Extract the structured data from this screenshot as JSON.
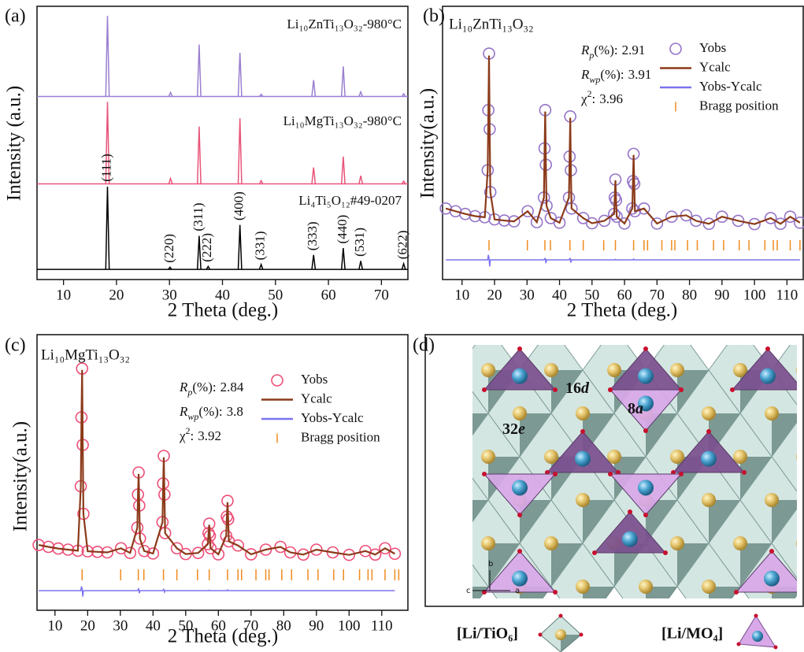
{
  "chart_data": [
    {
      "type": "stick",
      "panel_label": "(a)",
      "x_label": "2 Theta (deg.)",
      "y_label": "Intensity (a.u.)",
      "xlim": [
        5,
        75
      ],
      "xticks": [
        10,
        20,
        30,
        40,
        50,
        60,
        70
      ],
      "ylim": [
        0,
        100
      ],
      "series": [
        {
          "name": "Li₁₀ZnTi₁₃O₃₂-980°C",
          "color": "#9a7fcf",
          "baseline": 67,
          "x": [
            18.3,
            30.2,
            35.6,
            43.3,
            47.3,
            57.2,
            62.8,
            66.1,
            74.2
          ],
          "values": [
            96.5,
            68.5,
            86,
            83,
            67.8,
            73,
            78,
            68.7,
            68
          ]
        },
        {
          "name": "Li₁₀MgTi₁₃O₃₂-980°C",
          "color": "#e8557a",
          "baseline": 35,
          "x": [
            18.3,
            30.2,
            35.6,
            43.3,
            47.3,
            57.2,
            62.8,
            66.1,
            74.2
          ],
          "values": [
            65,
            37,
            56,
            59,
            36.2,
            41,
            45,
            38,
            36
          ]
        },
        {
          "name": "Li₄Ti₅O₁₂#49-0207",
          "color": "#000000",
          "baseline": 3.7,
          "x": [
            18.3,
            30.1,
            35.6,
            37.3,
            43.3,
            47.3,
            57.2,
            62.8,
            66.1,
            74.2
          ],
          "values": [
            34,
            4.5,
            16,
            4.8,
            20,
            5.5,
            9,
            11.5,
            6.8,
            5.8
          ]
        }
      ],
      "peak_labels": {
        "x": [
          18.3,
          30.1,
          35.6,
          37.3,
          43.3,
          47.3,
          57.2,
          62.8,
          66.1,
          74.2
        ],
        "labels": [
          "(111)",
          "(220)",
          "(311)",
          "(222)",
          "(400)",
          "(331)",
          "(333)",
          "(440)",
          "(531)",
          "(622)"
        ]
      }
    },
    {
      "type": "rietveld",
      "panel_label": "(b)",
      "title": "Li₁₀ZnTi₁₃O₃₂",
      "x_label": "2 Theta (deg.)",
      "y_label": "Intensity(a.u.)",
      "xlim": [
        4,
        115
      ],
      "xticks": [
        10,
        20,
        30,
        40,
        50,
        60,
        70,
        80,
        90,
        100,
        110
      ],
      "ylim": [
        0,
        100
      ],
      "stats": [
        {
          "symbol": "R",
          "sub": "p",
          "suffix": "(%):",
          "value": 2.91
        },
        {
          "symbol": "R",
          "sub": "wp",
          "suffix": "(%):",
          "value": 3.91
        },
        {
          "symbol": "χ",
          "sup": "2",
          "suffix": ":",
          "value": 3.96
        }
      ],
      "x": [
        5,
        8,
        11,
        14,
        17,
        17.9,
        18.1,
        18.3,
        18.5,
        18.7,
        20,
        23,
        26,
        30.2,
        33,
        35.2,
        35.4,
        35.6,
        35.8,
        36,
        37.3,
        40,
        42.9,
        43.1,
        43.3,
        43.5,
        43.7,
        47.3,
        50,
        53.8,
        56.8,
        57,
        57.2,
        57.4,
        57.6,
        60,
        62.4,
        62.6,
        62.8,
        63,
        63.2,
        66,
        70,
        74.5,
        79,
        82,
        86,
        90,
        95,
        100,
        105,
        108,
        111,
        114
      ],
      "series": [
        {
          "name": "Yobs",
          "color": "#9474c8",
          "values": [
            26,
            25,
            24,
            23.2,
            22.8,
            40,
            62,
            82.7,
            55,
            32,
            22,
            21.6,
            21.3,
            25,
            21,
            30,
            48,
            62,
            42,
            27,
            22.5,
            20.8,
            30,
            45,
            59.7,
            40,
            26,
            22.5,
            20.6,
            21.5,
            24,
            30,
            36.6,
            29,
            23,
            20.5,
            26,
            36,
            46,
            35,
            25,
            26,
            20.5,
            23,
            23.5,
            21.5,
            20.4,
            23,
            21.5,
            20.3,
            22.5,
            20.4,
            23,
            20.8
          ]
        },
        {
          "name": "Ycalc",
          "color": "#8b3a1a",
          "values": [
            26,
            25,
            24,
            23.2,
            22.8,
            40,
            61,
            82,
            55,
            32,
            22,
            21.6,
            21.3,
            25,
            21,
            30,
            47.5,
            61.5,
            42,
            27,
            22.5,
            20.8,
            30,
            44.5,
            59.2,
            40,
            26,
            22.5,
            20.6,
            21.5,
            24,
            30,
            36.3,
            29,
            23,
            20.5,
            26,
            36,
            45.6,
            35,
            25,
            26,
            20.5,
            23,
            23.5,
            21.5,
            20.4,
            23,
            21.5,
            20.3,
            22.5,
            20.4,
            23,
            20.8
          ]
        },
        {
          "name": "Yobs-Ycalc",
          "color": "#7b73f0",
          "values": [
            7.2,
            7.2,
            7.2,
            7.2,
            7.2,
            7.2,
            9,
            7.9,
            4.8,
            7.2,
            7.2,
            7.2,
            7.2,
            7.2,
            7.2,
            7.2,
            7.6,
            7.7,
            6,
            7.2,
            7.2,
            7.2,
            7.2,
            7.6,
            7.7,
            6.2,
            7.2,
            7.2,
            7.2,
            7.2,
            7.2,
            7.2,
            7.4,
            7.2,
            7.2,
            7.2,
            7.2,
            7.2,
            7.5,
            7.2,
            7.2,
            7.2,
            7.2,
            7.2,
            7.2,
            7.2,
            7.2,
            7.2,
            7.2,
            7.2,
            7.2,
            7.2,
            7.2,
            7.2
          ]
        },
        {
          "name": "Bragg position",
          "color": "#f08a1e",
          "x": [
            18.3,
            30.1,
            35.5,
            37.2,
            43.2,
            47.3,
            53.6,
            57.2,
            62.8,
            66.0,
            67.1,
            71.5,
            74.5,
            75.5,
            79.4,
            82.4,
            87.4,
            90.5,
            95.3,
            98.3,
            103.2,
            105.8,
            107.0,
            111.0,
            114.0
          ]
        }
      ]
    },
    {
      "type": "rietveld",
      "panel_label": "(c)",
      "title": "Li₁₀MgTi₁₃O₃₂",
      "x_label": "2 Theta (deg.)",
      "y_label": "Intensity(a.u.)",
      "xlim": [
        4.5,
        118
      ],
      "xticks": [
        10,
        20,
        30,
        40,
        50,
        60,
        70,
        80,
        90,
        100,
        110
      ],
      "ylim": [
        0,
        100
      ],
      "stats": [
        {
          "symbol": "R",
          "sub": "p",
          "suffix": "(%):",
          "value": 2.84
        },
        {
          "symbol": "R",
          "sub": "wp",
          "suffix": "(%):",
          "value": 3.8
        },
        {
          "symbol": "χ",
          "sup": "2",
          "suffix": ":",
          "value": 3.92
        }
      ],
      "x": [
        5,
        8,
        11,
        14,
        17,
        17.9,
        18.1,
        18.3,
        18.5,
        18.7,
        20,
        23,
        26,
        30.2,
        33,
        35.2,
        35.4,
        35.6,
        35.8,
        36,
        37.3,
        40,
        42.9,
        43.1,
        43.3,
        43.5,
        43.7,
        47.3,
        50,
        53.8,
        56.8,
        57,
        57.2,
        57.4,
        57.6,
        60,
        62.4,
        62.6,
        62.8,
        63,
        63.2,
        66,
        70,
        74.5,
        79,
        82,
        86,
        90,
        95,
        100,
        105,
        108,
        111,
        114
      ],
      "series": [
        {
          "name": "Yobs",
          "color": "#ee4f78",
          "values": [
            23.7,
            23,
            22.4,
            22,
            21.6,
            45,
            70,
            87.7,
            60,
            35,
            21.4,
            21.2,
            21,
            22.5,
            20.8,
            30,
            42,
            50,
            38,
            26,
            21.5,
            20.6,
            32,
            46,
            56,
            42,
            28,
            22.5,
            20.4,
            20.8,
            24,
            28,
            31.4,
            27,
            22.5,
            20.3,
            27,
            34,
            39.7,
            33,
            25,
            23.5,
            20.3,
            22,
            23,
            21,
            20.2,
            22,
            21,
            20.1,
            21.5,
            20.2,
            22.5,
            20.5
          ]
        },
        {
          "name": "Ycalc",
          "color": "#8b3a1a",
          "values": [
            23.7,
            23,
            22.4,
            22,
            21.6,
            45,
            69.5,
            87.2,
            60,
            35,
            21.4,
            21.2,
            21,
            22.5,
            20.8,
            30,
            42,
            49.5,
            38,
            26,
            21.5,
            20.6,
            32,
            45.5,
            55.5,
            42,
            28,
            22.5,
            20.4,
            20.8,
            24,
            28,
            31,
            27,
            22.5,
            20.3,
            27,
            34,
            39.2,
            33,
            25,
            23.5,
            20.3,
            22,
            23,
            21,
            20.2,
            22,
            21,
            20.1,
            21.5,
            20.2,
            22.5,
            20.5
          ]
        },
        {
          "name": "Yobs-Ycalc",
          "color": "#7b73f0",
          "values": [
            7.1,
            7.1,
            7.1,
            7.1,
            7.1,
            7.1,
            8.6,
            7.8,
            5,
            7.1,
            7.1,
            7.1,
            7.1,
            7.1,
            7.1,
            7.1,
            7.5,
            7.8,
            6.2,
            7.1,
            7.1,
            7.1,
            7.1,
            7.4,
            7.6,
            6.6,
            7.1,
            7.1,
            7.1,
            7.1,
            7.1,
            7.1,
            7.3,
            7.1,
            7.1,
            7.1,
            7.1,
            7.1,
            7.4,
            7.1,
            7.1,
            7.1,
            7.1,
            7.1,
            7.1,
            7.1,
            7.1,
            7.1,
            7.1,
            7.1,
            7.1,
            7.1,
            7.1,
            7.1
          ]
        },
        {
          "name": "Bragg position",
          "color": "#f08a1e",
          "x": [
            18.3,
            30.1,
            35.5,
            37.2,
            43.2,
            47.3,
            53.6,
            57.2,
            62.8,
            66.0,
            67.1,
            71.5,
            74.5,
            75.5,
            79.4,
            82.4,
            87.4,
            90.5,
            95.3,
            98.3,
            103.2,
            105.8,
            107.0,
            111.0,
            114.0,
            115.2
          ]
        }
      ]
    }
  ],
  "structure": {
    "panel_label": "(d)",
    "sites": [
      {
        "number": "16",
        "letter": "d"
      },
      {
        "number": "8",
        "letter": "a"
      },
      {
        "number": "32",
        "letter": "e"
      }
    ],
    "axes": [
      "b",
      "c",
      "a"
    ],
    "legend": [
      "[Li/TiO₆]",
      "[Li/MO₄]"
    ]
  }
}
